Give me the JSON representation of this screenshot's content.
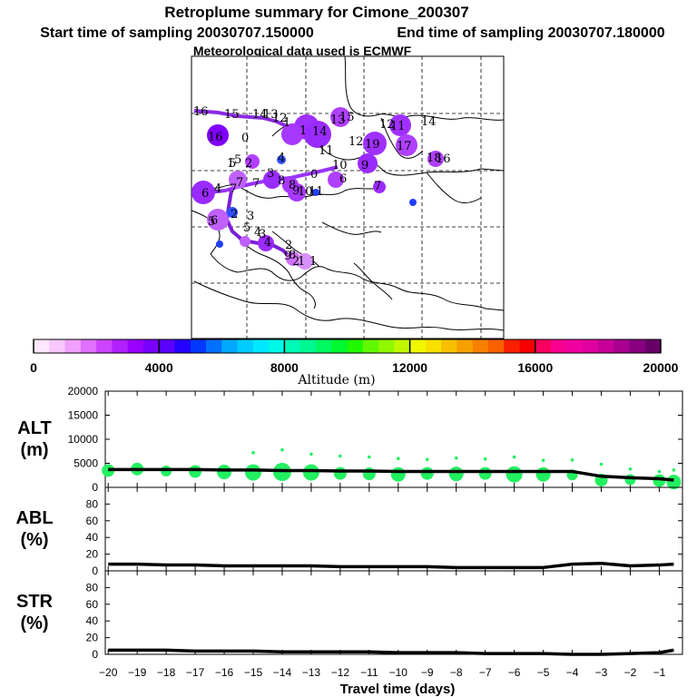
{
  "title": {
    "line1": "Retroplume summary for Cimone_200307",
    "line2a": "Start time of sampling 20030707.150000",
    "line2b": "End time of sampling 20030707.180000",
    "line3": "Meteorological data used is ECMWF"
  },
  "map": {
    "cluster_labels": [
      "16",
      "15",
      "14",
      "13",
      "12",
      "1",
      "14",
      "13",
      "11",
      "16",
      "11",
      "10",
      "9",
      "17",
      "19",
      "18",
      "0",
      "7",
      "2",
      "1",
      "3",
      "5",
      "6",
      "7",
      "4",
      "8",
      "8",
      "9",
      "10",
      "11",
      "5",
      "6",
      "2",
      "5",
      "3",
      "3",
      "4",
      "2",
      "9",
      "8",
      "2",
      "1",
      "1",
      "7",
      "6",
      "16",
      "14",
      "15",
      "4",
      "0",
      "12",
      "5",
      "12",
      "7",
      "4",
      "1"
    ]
  },
  "colorbar": {
    "label": "Altitude (m)",
    "tick_labels": [
      "0",
      "4000",
      "8000",
      "12000",
      "16000",
      "20000"
    ],
    "colors": [
      "#ffe8ff",
      "#f8c8ff",
      "#f0a0ff",
      "#e070ff",
      "#cc44ff",
      "#b020ff",
      "#9a00ff",
      "#7a00ff",
      "#5a00ff",
      "#2400ff",
      "#0038ff",
      "#0070ff",
      "#00a8ff",
      "#00ccff",
      "#00e8ff",
      "#00f8e8",
      "#00f8b8",
      "#00f890",
      "#00f860",
      "#00f830",
      "#20f800",
      "#60f800",
      "#90f800",
      "#c0f800",
      "#f0f800",
      "#f8e000",
      "#f8c000",
      "#f8a000",
      "#f88000",
      "#f86000",
      "#f82000",
      "#f80000",
      "#f80060",
      "#f80090",
      "#f000a0",
      "#e000a0",
      "#c8009a",
      "#a80090",
      "#880080",
      "#680068"
    ]
  },
  "chart_data": [
    {
      "type": "line",
      "name": "ALT",
      "ylabel_line1": "ALT",
      "ylabel_line2": "(m)",
      "ylim": [
        0,
        20000
      ],
      "yticks": [
        "0",
        "5000",
        "10000",
        "15000",
        "20000"
      ],
      "x": [
        -20,
        -19,
        -18,
        -17,
        -16,
        -15,
        -14,
        -13,
        -12,
        -11,
        -10,
        -9,
        -8,
        -7,
        -6,
        -5,
        -4,
        -3,
        -2,
        -1,
        -0.5
      ],
      "values": [
        3700,
        3700,
        3700,
        3700,
        3600,
        3600,
        3500,
        3500,
        3400,
        3400,
        3300,
        3300,
        3300,
        3300,
        3300,
        3300,
        3300,
        2300,
        2000,
        1800,
        1500
      ],
      "cluster_x": [
        -20,
        -19,
        -18,
        -17,
        -16,
        -15,
        -14,
        -13,
        -12,
        -11,
        -10,
        -9,
        -8,
        -7,
        -6,
        -5,
        -4,
        -3,
        -2,
        -1,
        -0.5
      ],
      "cluster_y": [
        3500,
        3800,
        3400,
        3300,
        3200,
        3100,
        3200,
        3100,
        2900,
        2800,
        2700,
        2900,
        2800,
        2900,
        2700,
        2700,
        2600,
        1500,
        1600,
        1400,
        1100
      ],
      "cluster_size": [
        7,
        7,
        6,
        7,
        8,
        9,
        10,
        9,
        7,
        7,
        8,
        7,
        8,
        7,
        9,
        8,
        6,
        7,
        6,
        7,
        8
      ],
      "outlier_x": [
        -15,
        -14,
        -13,
        -12,
        -11,
        -10,
        -9,
        -8,
        -7,
        -6,
        -5,
        -4,
        -3,
        -2,
        -1,
        -0.5
      ],
      "outlier_y": [
        7200,
        7800,
        6900,
        6500,
        6300,
        6000,
        5800,
        6100,
        5900,
        6300,
        5600,
        5700,
        4800,
        3800,
        3300,
        3600
      ]
    },
    {
      "type": "line",
      "name": "ABL",
      "ylabel_line1": "ABL",
      "ylabel_line2": "(%)",
      "ylim": [
        0,
        100
      ],
      "yticks": [
        "0",
        "20",
        "40",
        "60",
        "80"
      ],
      "x": [
        -20,
        -19,
        -18,
        -17,
        -16,
        -15,
        -14,
        -13,
        -12,
        -11,
        -10,
        -9,
        -8,
        -7,
        -6,
        -5,
        -4,
        -3,
        -2,
        -1,
        -0.5
      ],
      "values": [
        8,
        8,
        7,
        7,
        6,
        6,
        6,
        6,
        5,
        5,
        5,
        5,
        4,
        4,
        4,
        4,
        8,
        9,
        6,
        7,
        8
      ]
    },
    {
      "type": "line",
      "name": "STR",
      "ylabel_line1": "STR",
      "ylabel_line2": "(%)",
      "ylim": [
        0,
        100
      ],
      "yticks": [
        "0",
        "20",
        "40",
        "60",
        "80"
      ],
      "x": [
        -20,
        -19,
        -18,
        -17,
        -16,
        -15,
        -14,
        -13,
        -12,
        -11,
        -10,
        -9,
        -8,
        -7,
        -6,
        -5,
        -4,
        -3,
        -2,
        -1,
        -0.5
      ],
      "values": [
        5,
        5,
        5,
        4,
        4,
        4,
        3,
        3,
        3,
        3,
        2,
        2,
        2,
        1,
        1,
        1,
        0,
        0,
        1,
        2,
        5
      ]
    }
  ],
  "xaxis": {
    "label": "Travel time (days)",
    "tick_labels": [
      "−20",
      "−19",
      "−18",
      "−17",
      "−16",
      "−15",
      "−14",
      "−13",
      "−12",
      "−11",
      "−10",
      "−9",
      "−8",
      "−7",
      "−6",
      "−5",
      "−4",
      "−3",
      "−2",
      "−1"
    ]
  }
}
